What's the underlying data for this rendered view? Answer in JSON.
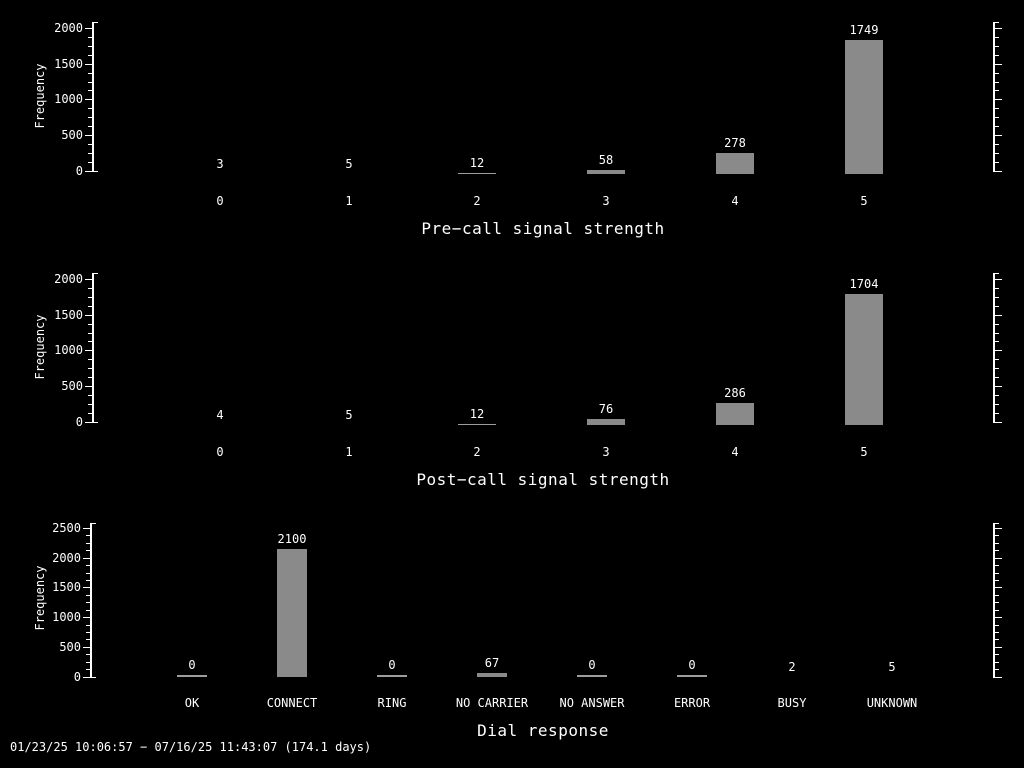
{
  "window": {
    "background": "#000000"
  },
  "colors": {
    "text": "#ffffff",
    "axis": "#ffffff",
    "bar": "#8a8a8a",
    "thin_bar": "#9c9c9c"
  },
  "footer": "01/23/25 10:06:57 − 07/16/25 11:43:07 (174.1 days)",
  "chart_data": [
    {
      "type": "bar",
      "title": "Pre−call signal strength",
      "ylabel": "Frequency",
      "xlabel": "",
      "categories": [
        "0",
        "1",
        "2",
        "3",
        "4",
        "5"
      ],
      "values": [
        3,
        5,
        12,
        58,
        278,
        1749
      ],
      "yticks": [
        "0",
        "500",
        "1000",
        "1500",
        "2000"
      ],
      "ylim": [
        0,
        2000
      ],
      "grid": false,
      "legend": "none",
      "value_labels_shown": true
    },
    {
      "type": "bar",
      "title": "Post−call signal strength",
      "ylabel": "Frequency",
      "xlabel": "",
      "categories": [
        "0",
        "1",
        "2",
        "3",
        "4",
        "5"
      ],
      "values": [
        4,
        5,
        12,
        76,
        286,
        1704
      ],
      "yticks": [
        "0",
        "500",
        "1000",
        "1500",
        "2000"
      ],
      "ylim": [
        0,
        2000
      ],
      "grid": false,
      "legend": "none",
      "value_labels_shown": true
    },
    {
      "type": "bar",
      "title": "Dial response",
      "ylabel": "Frequency",
      "xlabel": "",
      "categories": [
        "OK",
        "CONNECT",
        "RING",
        "NO CARRIER",
        "NO ANSWER",
        "ERROR",
        "BUSY",
        "UNKNOWN"
      ],
      "values": [
        0,
        2100,
        0,
        67,
        0,
        0,
        2,
        5
      ],
      "yticks": [
        "0",
        "500",
        "1000",
        "1500",
        "2000",
        "2500"
      ],
      "ylim": [
        0,
        2500
      ],
      "grid": false,
      "legend": "none",
      "value_labels_shown": true
    }
  ]
}
